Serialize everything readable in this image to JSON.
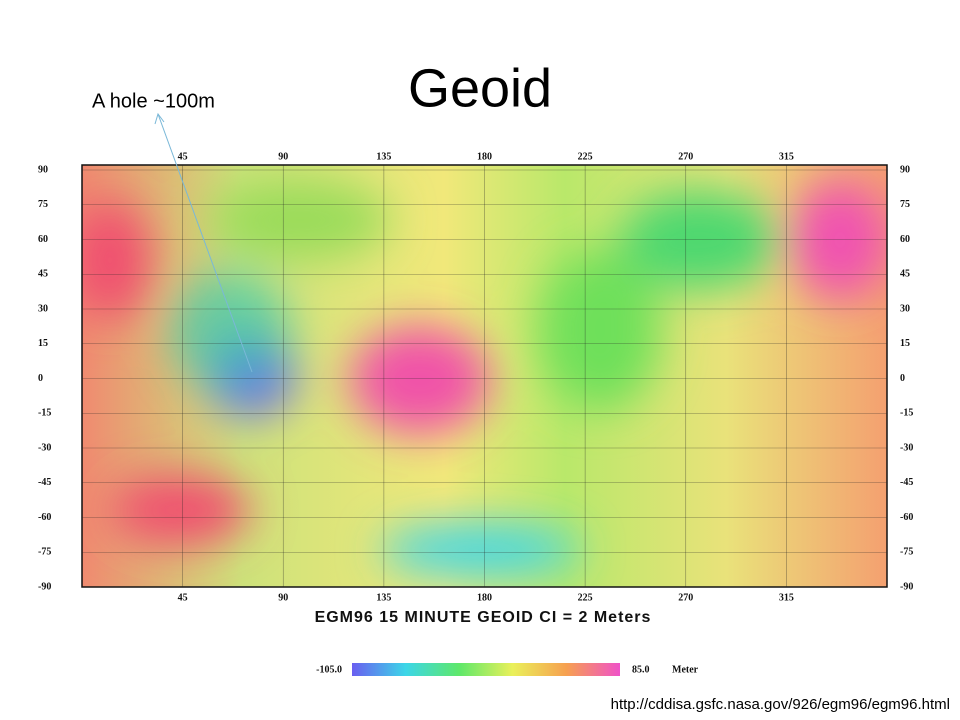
{
  "title": "Geoid",
  "annotation": "A hole ~100m",
  "map": {
    "lon_ticks": [
      45,
      90,
      135,
      180,
      225,
      270,
      315
    ],
    "lat_ticks": [
      90,
      75,
      60,
      45,
      30,
      15,
      0,
      -15,
      -30,
      -45,
      -60,
      -75,
      -90
    ],
    "caption": "EGM96 15 MINUTE GEOID CI = 2 Meters"
  },
  "colorbar": {
    "min_label": "-105.0",
    "max_label": "85.0",
    "unit": "Meter"
  },
  "source": "http://cddisa.gsfc.nasa.gov/926/egm96/egm96.html"
}
